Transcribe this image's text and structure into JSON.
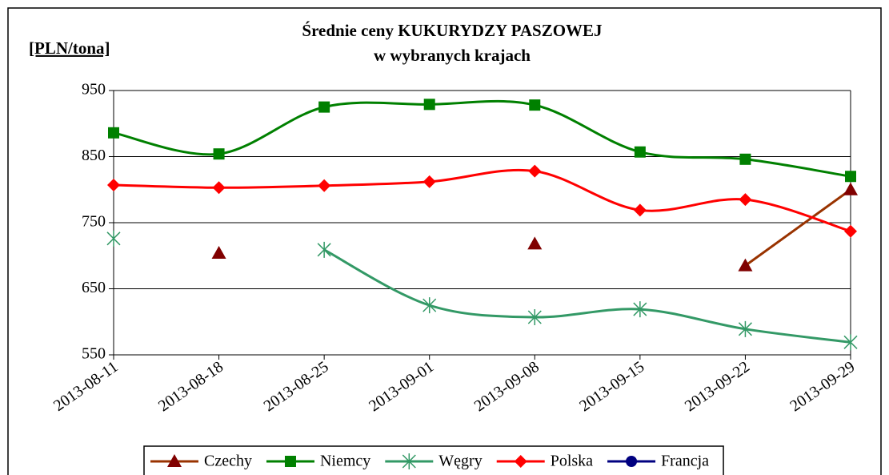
{
  "chart_data": {
    "type": "line",
    "title": "Średnie ceny KUKURYDZY PASZOWEJ",
    "subtitle": "w wybranych krajach",
    "y_label": "[PLN/tona]",
    "x": [
      "2013-08-11",
      "2013-08-18",
      "2013-08-25",
      "2013-09-01",
      "2013-09-08",
      "2013-09-15",
      "2013-09-22",
      "2013-09-29"
    ],
    "xlim": [
      "2013-08-11",
      "2013-09-29"
    ],
    "xticks": [
      "2013-08-11",
      "2013-08-18",
      "2013-08-25",
      "2013-09-01",
      "2013-09-08",
      "2013-09-15",
      "2013-09-22",
      "2013-09-29"
    ],
    "ylim": [
      550,
      950
    ],
    "yticks": [
      550,
      650,
      750,
      850,
      950
    ],
    "grid": true,
    "legend": "bottom",
    "series": [
      {
        "name": "Czechy",
        "color": "#993300",
        "marker_color": "#800000",
        "marker": "triangle",
        "values": [
          null,
          704,
          null,
          null,
          718,
          null,
          685,
          800
        ]
      },
      {
        "name": "Niemcy",
        "color": "#008000",
        "marker_color": "#008000",
        "marker": "square",
        "values": [
          886,
          854,
          925,
          929,
          928,
          857,
          846,
          820
        ]
      },
      {
        "name": "Węgry",
        "color": "#339966",
        "marker_color": "#339966",
        "marker": "star",
        "values": [
          726,
          null,
          709,
          625,
          607,
          619,
          589,
          569
        ]
      },
      {
        "name": "Polska",
        "color": "#ff0000",
        "marker_color": "#ff0000",
        "marker": "diamond",
        "values": [
          807,
          803,
          806,
          812,
          828,
          769,
          785,
          737
        ]
      },
      {
        "name": "Francja",
        "color": "#000080",
        "marker_color": "#000080",
        "marker": "circle",
        "values": [
          null,
          null,
          null,
          null,
          null,
          null,
          null,
          null
        ]
      }
    ]
  }
}
